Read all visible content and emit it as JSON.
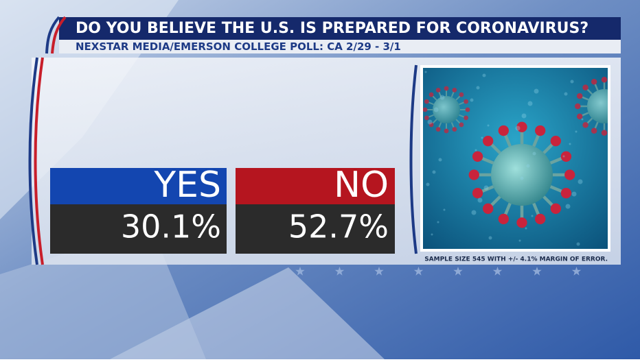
{
  "header": {
    "title": "DO YOU BELIEVE THE U.S. IS PREPARED FOR CORONAVIRUS?",
    "subtitle": "NEXSTAR MEDIA/EMERSON COLLEGE POLL: CA 2/29 - 3/1"
  },
  "results": [
    {
      "label": "YES",
      "value": "30.1%"
    },
    {
      "label": "NO",
      "value": "52.7%"
    }
  ],
  "footnote": "SAMPLE SIZE 545 WITH +/- 4.1% MARGIN OF ERROR."
}
